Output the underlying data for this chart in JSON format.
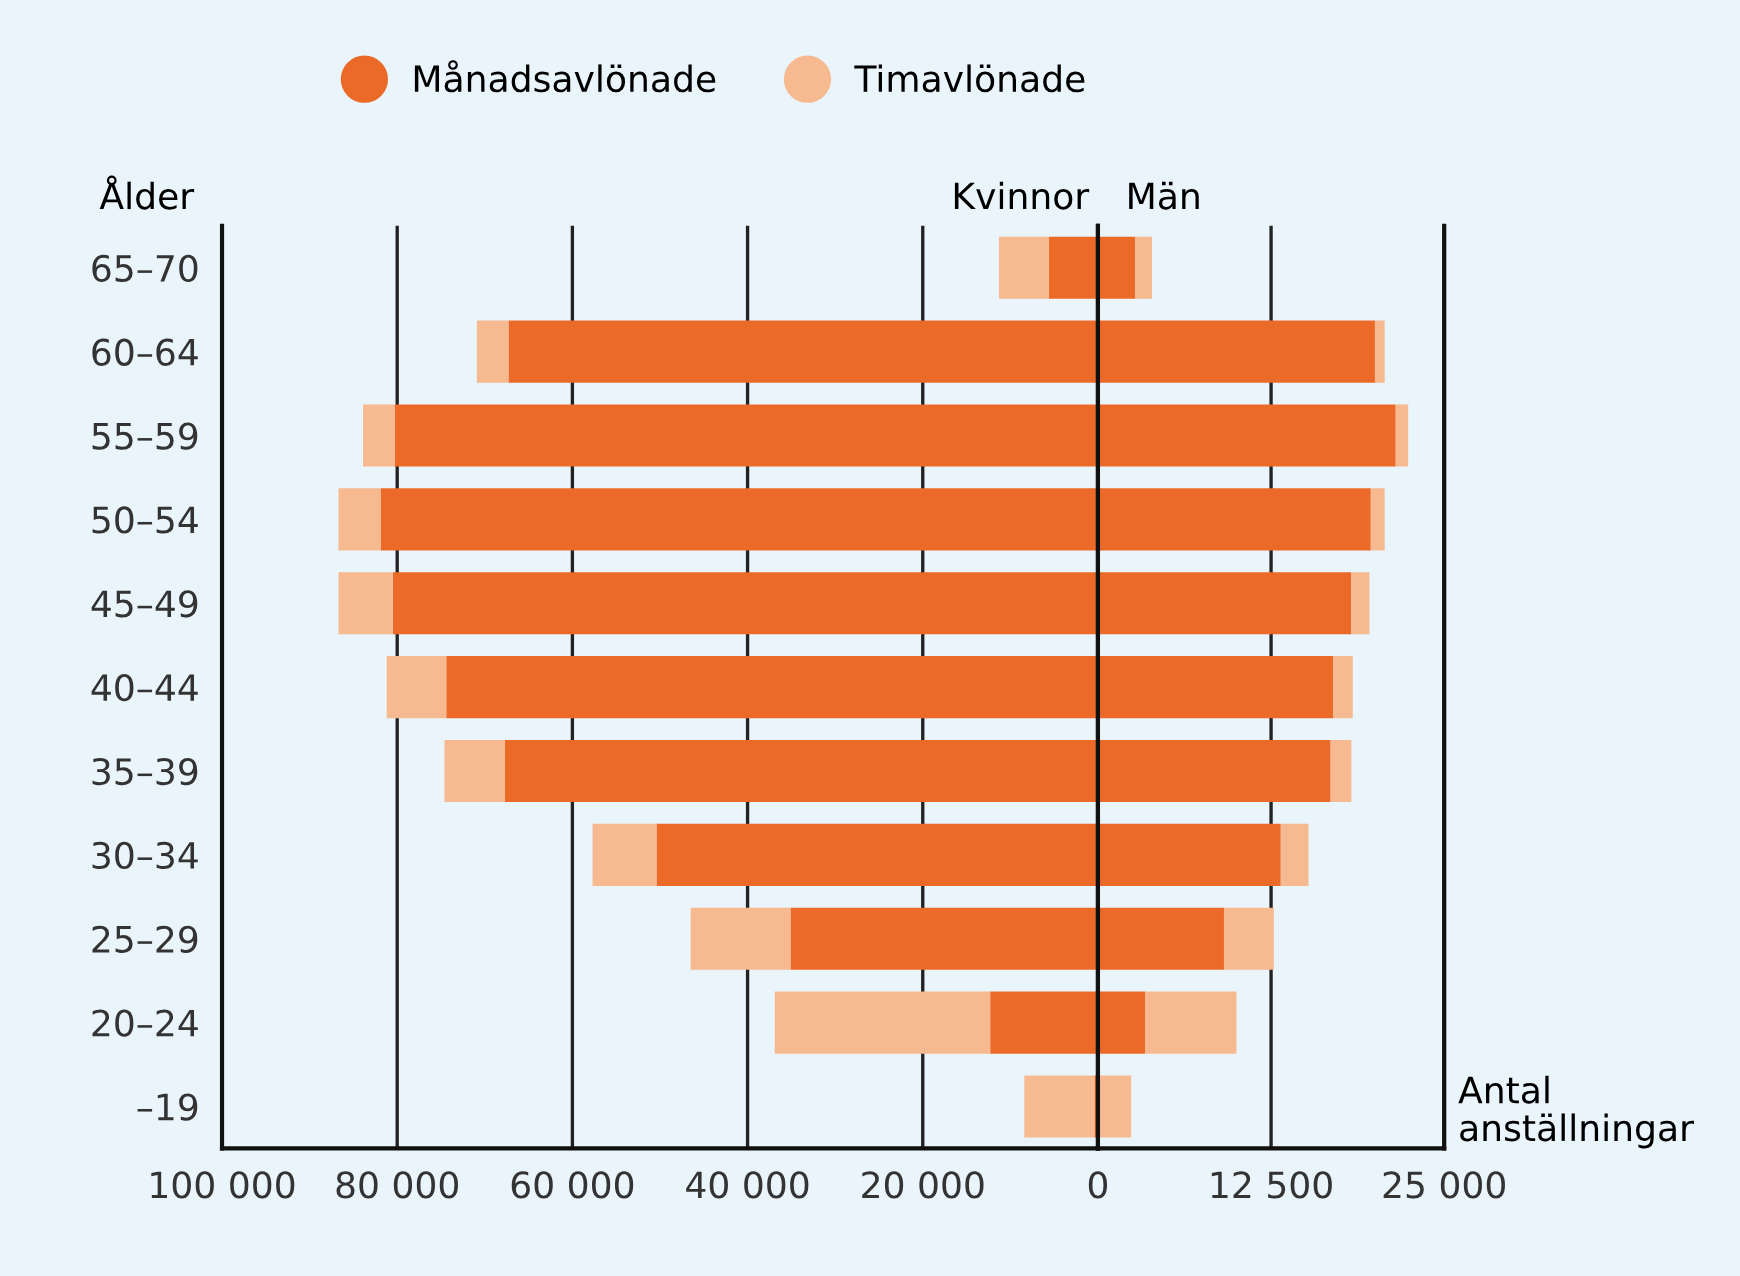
{
  "chart_data": [
    {
      "type": "bar",
      "orientation": "horizontal",
      "stacked": true,
      "title": "Kvinnor",
      "ylabel": "Ålder",
      "legend": "top",
      "grid": "x",
      "categories": [
        "65–70",
        "60–64",
        "55–59",
        "50–54",
        "45–49",
        "40–44",
        "35–39",
        "30–34",
        "25–29",
        "20–24",
        "–19"
      ],
      "xlim": [
        100000,
        0
      ],
      "xticks": [
        {
          "value": 100000,
          "label": "100 000"
        },
        {
          "value": 80000,
          "label": "80 000"
        },
        {
          "value": 60000,
          "label": "60 000"
        },
        {
          "value": 40000,
          "label": "40 000"
        },
        {
          "value": 20000,
          "label": "20 000"
        },
        0
      ],
      "series": [
        {
          "name": "Månadsavlönade",
          "color": "#eb6a28",
          "values": [
            5600,
            67300,
            80300,
            81900,
            80500,
            74400,
            67700,
            50400,
            35100,
            12300,
            400
          ]
        },
        {
          "name": "Timavlönade",
          "color": "#f7b98f",
          "values": [
            5700,
            3600,
            3600,
            4800,
            6200,
            6800,
            6900,
            7300,
            11400,
            24600,
            8000
          ]
        }
      ]
    },
    {
      "type": "bar",
      "orientation": "horizontal",
      "stacked": true,
      "title": "Män",
      "xlabel": "Antal\nanställningar",
      "grid": "x",
      "tick_labels": "x",
      "categories": [
        null,
        null,
        null,
        null,
        null,
        null,
        null,
        null,
        null,
        null,
        null
      ],
      "xlim": [
        0,
        25000
      ],
      "xticks": [
        {
          "value": 0,
          "label": null
        },
        {
          "value": 12500,
          "label": "12 500"
        },
        {
          "value": 25000,
          "label": "25 000"
        }
      ],
      "series": [
        {
          "color": "#eb6a28",
          "values": [
            2700,
            20000,
            21500,
            19700,
            18300,
            17000,
            16800,
            13200,
            9100,
            3400,
            0
          ]
        },
        {
          "color": "#f7b98f",
          "values": [
            1200,
            700,
            900,
            1000,
            1300,
            1400,
            1500,
            2000,
            3600,
            6600,
            2400
          ]
        }
      ]
    }
  ]
}
